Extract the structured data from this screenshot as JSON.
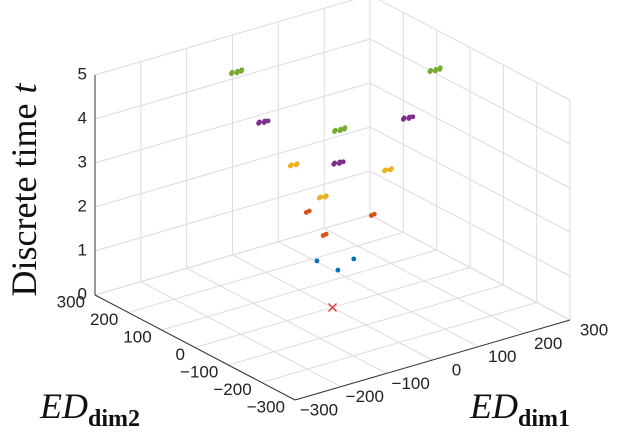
{
  "chart_data": {
    "type": "scatter3d",
    "xlabel": {
      "text": "ED",
      "subscript": "dim1"
    },
    "ylabel": {
      "text": "ED",
      "subscript": "dim2"
    },
    "zlabel": {
      "text": "Discrete time",
      "variable": "t"
    },
    "xlim": [
      -300,
      300
    ],
    "ylim": [
      -300,
      300
    ],
    "zlim": [
      0,
      5
    ],
    "xticks": [
      {
        "value": -300,
        "label": "−300"
      },
      {
        "value": -200,
        "label": "−200"
      },
      {
        "value": -100,
        "label": "−100"
      },
      0,
      100,
      200,
      300
    ],
    "yticks": [
      {
        "value": -300,
        "label": "−300"
      },
      {
        "value": -200,
        "label": "−200"
      },
      {
        "value": -100,
        "label": "−100"
      },
      0,
      100,
      200,
      300
    ],
    "zticks": [
      0,
      1,
      2,
      3,
      4,
      5
    ],
    "grid": true,
    "series": [
      {
        "color": "#e8302a",
        "marker": "x",
        "x": [
          0
        ],
        "y": [
          0
        ],
        "z": [
          0
        ]
      },
      {
        "color": "#0072bd",
        "marker": "o",
        "x": [
          -15,
          -10,
          42
        ],
        "y": [
          26,
          -30,
          -6
        ],
        "z": [
          1,
          1,
          1
        ]
      },
      {
        "color": "#d95319",
        "marker": "o",
        "x": [
          -56,
          -48,
          -18,
          -10,
          65,
          73
        ],
        "y": [
          -49,
          -47,
          54,
          56,
          -27,
          -25
        ],
        "z": [
          2,
          2,
          2,
          2,
          2,
          2
        ]
      },
      {
        "color": "#edb120",
        "marker": "o",
        "x": [
          -79,
          -74,
          -68,
          -63,
          -34,
          -29,
          -23,
          -18,
          85,
          90,
          96,
          101
        ],
        "y": [
          -69,
          -66,
          -71,
          -68,
          80,
          83,
          78,
          81,
          -39,
          -36,
          -41,
          -38
        ],
        "z": [
          3,
          3,
          3,
          3,
          3,
          3,
          3,
          3,
          3,
          3,
          3,
          3
        ]
      },
      {
        "color": "#7e2f8e",
        "marker": "o",
        "x": [
          -86,
          -81,
          -76,
          -71,
          -66,
          -82,
          -77,
          -72,
          -67,
          -62,
          132,
          137,
          142,
          147,
          152
        ],
        "y": [
          -122,
          -118,
          -125,
          -120,
          -123,
          109,
          113,
          106,
          111,
          108,
          -31,
          -27,
          -34,
          -29,
          -32
        ],
        "z": [
          4,
          4,
          4,
          4,
          4,
          4,
          4,
          4,
          4,
          4,
          4,
          4,
          4,
          4,
          4
        ]
      },
      {
        "color": "#77ac30",
        "marker": "o",
        "x": [
          -115,
          -110,
          -105,
          -100,
          -95,
          -90,
          -105,
          -100,
          -95,
          -90,
          -85,
          -80,
          179,
          184,
          189,
          194,
          199,
          204
        ],
        "y": [
          -164,
          -160,
          -167,
          -162,
          -166,
          -161,
          159,
          163,
          156,
          161,
          157,
          162,
          -46,
          -42,
          -49,
          -44,
          -48,
          -43
        ],
        "z": [
          5,
          5,
          5,
          5,
          5,
          5,
          5,
          5,
          5,
          5,
          5,
          5,
          5,
          5,
          5,
          5,
          5,
          5
        ]
      }
    ]
  }
}
